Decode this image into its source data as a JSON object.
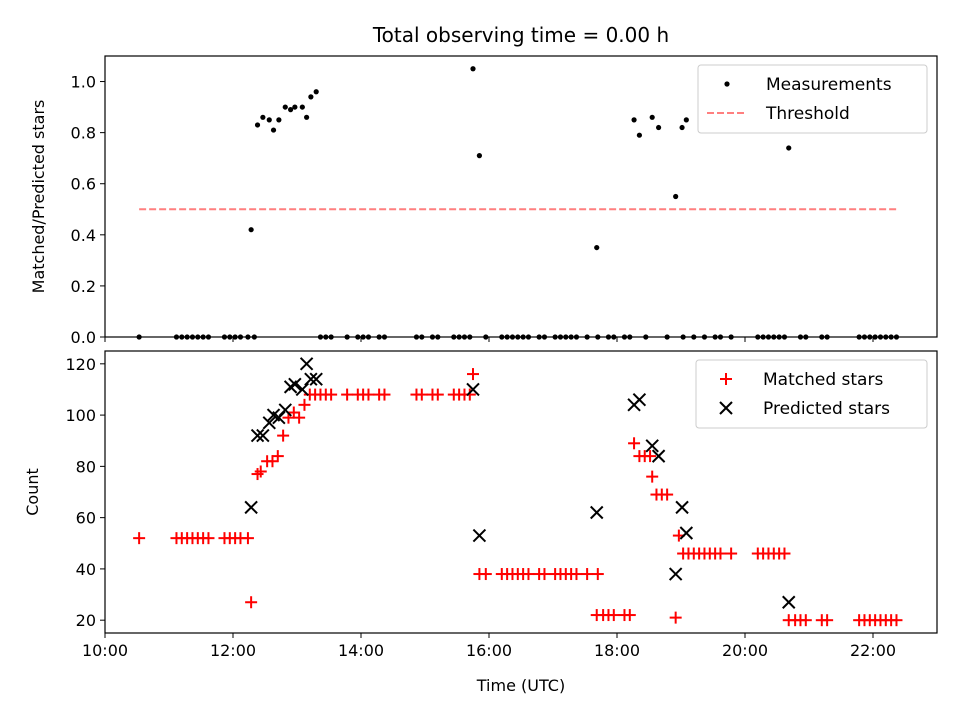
{
  "chart_data": [
    {
      "type": "scatter",
      "title": "Total observing time = 0.00 h",
      "xlabel": "",
      "ylabel": "Matched/Predicted stars",
      "xlim": [
        "10:00",
        "23:00"
      ],
      "ylim": [
        0,
        1.1
      ],
      "yticks": [
        "0.0",
        "0.2",
        "0.4",
        "0.6",
        "0.8",
        "1.0"
      ],
      "legend": {
        "position": "top-right",
        "entries": [
          "Measurements",
          "Threshold"
        ]
      },
      "grid": false,
      "series": [
        {
          "name": "Measurements",
          "marker": "dot",
          "color": "#000000",
          "points": [
            [
              "10:32",
              0.0
            ],
            [
              "11:07",
              0.0
            ],
            [
              "11:12",
              0.0
            ],
            [
              "11:17",
              0.0
            ],
            [
              "11:22",
              0.0
            ],
            [
              "11:27",
              0.0
            ],
            [
              "11:32",
              0.0
            ],
            [
              "11:37",
              0.0
            ],
            [
              "11:52",
              0.0
            ],
            [
              "11:57",
              0.0
            ],
            [
              "12:02",
              0.0
            ],
            [
              "12:07",
              0.0
            ],
            [
              "12:14",
              0.0
            ],
            [
              "12:20",
              0.0
            ],
            [
              "12:17",
              0.42
            ],
            [
              "12:23",
              0.83
            ],
            [
              "12:28",
              0.86
            ],
            [
              "12:34",
              0.85
            ],
            [
              "12:38",
              0.81
            ],
            [
              "12:43",
              0.85
            ],
            [
              "12:49",
              0.9
            ],
            [
              "12:54",
              0.89
            ],
            [
              "12:58",
              0.9
            ],
            [
              "13:05",
              0.9
            ],
            [
              "13:09",
              0.86
            ],
            [
              "13:13",
              0.94
            ],
            [
              "13:18",
              0.96
            ],
            [
              "13:22",
              0.0
            ],
            [
              "13:27",
              0.0
            ],
            [
              "13:32",
              0.0
            ],
            [
              "13:47",
              0.0
            ],
            [
              "13:57",
              0.0
            ],
            [
              "14:02",
              0.0
            ],
            [
              "14:07",
              0.0
            ],
            [
              "14:17",
              0.0
            ],
            [
              "14:22",
              0.0
            ],
            [
              "14:52",
              0.0
            ],
            [
              "14:57",
              0.0
            ],
            [
              "15:07",
              0.0
            ],
            [
              "15:12",
              0.0
            ],
            [
              "15:27",
              0.0
            ],
            [
              "15:32",
              0.0
            ],
            [
              "15:37",
              0.0
            ],
            [
              "15:42",
              0.0
            ],
            [
              "15:45",
              1.05
            ],
            [
              "15:51",
              0.71
            ],
            [
              "15:57",
              0.0
            ],
            [
              "16:12",
              0.0
            ],
            [
              "16:17",
              0.0
            ],
            [
              "16:22",
              0.0
            ],
            [
              "16:27",
              0.0
            ],
            [
              "16:32",
              0.0
            ],
            [
              "16:37",
              0.0
            ],
            [
              "16:47",
              0.0
            ],
            [
              "16:52",
              0.0
            ],
            [
              "17:02",
              0.0
            ],
            [
              "17:07",
              0.0
            ],
            [
              "17:12",
              0.0
            ],
            [
              "17:17",
              0.0
            ],
            [
              "17:22",
              0.0
            ],
            [
              "17:32",
              0.0
            ],
            [
              "17:41",
              0.35
            ],
            [
              "17:42",
              0.0
            ],
            [
              "17:52",
              0.0
            ],
            [
              "17:57",
              0.0
            ],
            [
              "18:07",
              0.0
            ],
            [
              "18:12",
              0.0
            ],
            [
              "18:16",
              0.85
            ],
            [
              "18:21",
              0.79
            ],
            [
              "18:27",
              0.0
            ],
            [
              "18:33",
              0.86
            ],
            [
              "18:39",
              0.82
            ],
            [
              "18:47",
              0.0
            ],
            [
              "18:55",
              0.55
            ],
            [
              "19:01",
              0.82
            ],
            [
              "19:05",
              0.85
            ],
            [
              "19:02",
              0.0
            ],
            [
              "19:12",
              0.0
            ],
            [
              "19:22",
              0.0
            ],
            [
              "19:32",
              0.0
            ],
            [
              "19:37",
              0.0
            ],
            [
              "19:47",
              0.0
            ],
            [
              "20:12",
              0.0
            ],
            [
              "20:17",
              0.0
            ],
            [
              "20:22",
              0.0
            ],
            [
              "20:27",
              0.0
            ],
            [
              "20:32",
              0.0
            ],
            [
              "20:37",
              0.0
            ],
            [
              "20:41",
              0.74
            ],
            [
              "20:52",
              0.0
            ],
            [
              "20:57",
              0.0
            ],
            [
              "21:12",
              0.0
            ],
            [
              "21:17",
              0.0
            ],
            [
              "21:47",
              0.0
            ],
            [
              "21:52",
              0.0
            ],
            [
              "21:57",
              0.0
            ],
            [
              "22:02",
              0.0
            ],
            [
              "22:07",
              0.0
            ],
            [
              "22:12",
              0.0
            ],
            [
              "22:17",
              0.0
            ],
            [
              "22:22",
              0.0
            ]
          ]
        },
        {
          "name": "Threshold",
          "marker": "dashed-line",
          "color": "#ff7f7f",
          "points": [
            [
              "10:32",
              0.5
            ],
            [
              "22:22",
              0.5
            ]
          ]
        }
      ]
    },
    {
      "type": "scatter",
      "title": "",
      "xlabel": "Time (UTC)",
      "ylabel": "Count",
      "xlim": [
        "10:00",
        "23:00"
      ],
      "ylim": [
        15,
        125
      ],
      "xticks": [
        "10:00",
        "12:00",
        "14:00",
        "16:00",
        "18:00",
        "20:00",
        "22:00"
      ],
      "yticks": [
        "20",
        "40",
        "60",
        "80",
        "100",
        "120"
      ],
      "legend": {
        "position": "top-right",
        "entries": [
          "Matched stars",
          "Predicted stars"
        ]
      },
      "grid": false,
      "series": [
        {
          "name": "Matched stars",
          "marker": "plus",
          "color": "#ff0000",
          "points": [
            [
              "10:32",
              52
            ],
            [
              "11:07",
              52
            ],
            [
              "11:12",
              52
            ],
            [
              "11:17",
              52
            ],
            [
              "11:22",
              52
            ],
            [
              "11:27",
              52
            ],
            [
              "11:32",
              52
            ],
            [
              "11:37",
              52
            ],
            [
              "11:52",
              52
            ],
            [
              "11:57",
              52
            ],
            [
              "12:02",
              52
            ],
            [
              "12:07",
              52
            ],
            [
              "12:14",
              52
            ],
            [
              "12:17",
              27
            ],
            [
              "12:23",
              77
            ],
            [
              "12:26",
              78
            ],
            [
              "12:32",
              82
            ],
            [
              "12:37",
              82
            ],
            [
              "12:42",
              84
            ],
            [
              "12:47",
              92
            ],
            [
              "12:52",
              99
            ],
            [
              "12:57",
              101
            ],
            [
              "13:02",
              99
            ],
            [
              "13:07",
              104
            ],
            [
              "13:12",
              108
            ],
            [
              "13:17",
              108
            ],
            [
              "13:22",
              108
            ],
            [
              "13:27",
              108
            ],
            [
              "13:32",
              108
            ],
            [
              "13:47",
              108
            ],
            [
              "13:57",
              108
            ],
            [
              "14:02",
              108
            ],
            [
              "14:07",
              108
            ],
            [
              "14:17",
              108
            ],
            [
              "14:22",
              108
            ],
            [
              "14:52",
              108
            ],
            [
              "14:57",
              108
            ],
            [
              "15:07",
              108
            ],
            [
              "15:12",
              108
            ],
            [
              "15:27",
              108
            ],
            [
              "15:32",
              108
            ],
            [
              "15:37",
              108
            ],
            [
              "15:42",
              108
            ],
            [
              "15:45",
              116
            ],
            [
              "15:51",
              38
            ],
            [
              "15:57",
              38
            ],
            [
              "16:12",
              38
            ],
            [
              "16:17",
              38
            ],
            [
              "16:22",
              38
            ],
            [
              "16:27",
              38
            ],
            [
              "16:32",
              38
            ],
            [
              "16:37",
              38
            ],
            [
              "16:47",
              38
            ],
            [
              "16:52",
              38
            ],
            [
              "17:02",
              38
            ],
            [
              "17:07",
              38
            ],
            [
              "17:12",
              38
            ],
            [
              "17:17",
              38
            ],
            [
              "17:22",
              38
            ],
            [
              "17:32",
              38
            ],
            [
              "17:41",
              22
            ],
            [
              "17:42",
              38
            ],
            [
              "17:47",
              22
            ],
            [
              "17:52",
              22
            ],
            [
              "17:57",
              22
            ],
            [
              "18:07",
              22
            ],
            [
              "18:12",
              22
            ],
            [
              "18:16",
              89
            ],
            [
              "18:21",
              84
            ],
            [
              "18:26",
              84
            ],
            [
              "18:31",
              84
            ],
            [
              "18:33",
              76
            ],
            [
              "18:37",
              69
            ],
            [
              "18:42",
              69
            ],
            [
              "18:47",
              69
            ],
            [
              "18:55",
              21
            ],
            [
              "18:58",
              53
            ],
            [
              "19:02",
              46
            ],
            [
              "19:07",
              46
            ],
            [
              "19:12",
              46
            ],
            [
              "19:17",
              46
            ],
            [
              "19:22",
              46
            ],
            [
              "19:27",
              46
            ],
            [
              "19:32",
              46
            ],
            [
              "19:37",
              46
            ],
            [
              "19:47",
              46
            ],
            [
              "20:12",
              46
            ],
            [
              "20:17",
              46
            ],
            [
              "20:22",
              46
            ],
            [
              "20:27",
              46
            ],
            [
              "20:32",
              46
            ],
            [
              "20:37",
              46
            ],
            [
              "20:41",
              20
            ],
            [
              "20:47",
              20
            ],
            [
              "20:52",
              20
            ],
            [
              "20:57",
              20
            ],
            [
              "21:12",
              20
            ],
            [
              "21:17",
              20
            ],
            [
              "21:47",
              20
            ],
            [
              "21:52",
              20
            ],
            [
              "21:57",
              20
            ],
            [
              "22:02",
              20
            ],
            [
              "22:07",
              20
            ],
            [
              "22:12",
              20
            ],
            [
              "22:17",
              20
            ],
            [
              "22:22",
              20
            ]
          ]
        },
        {
          "name": "Predicted stars",
          "marker": "x",
          "color": "#000000",
          "points": [
            [
              "12:17",
              64
            ],
            [
              "12:23",
              92
            ],
            [
              "12:28",
              92
            ],
            [
              "12:34",
              97
            ],
            [
              "12:38",
              100
            ],
            [
              "12:43",
              99
            ],
            [
              "12:49",
              102
            ],
            [
              "12:54",
              111
            ],
            [
              "12:58",
              112
            ],
            [
              "13:05",
              110
            ],
            [
              "13:09",
              120
            ],
            [
              "13:13",
              114
            ],
            [
              "13:18",
              114
            ],
            [
              "15:45",
              110
            ],
            [
              "15:51",
              53
            ],
            [
              "17:41",
              62
            ],
            [
              "18:16",
              104
            ],
            [
              "18:21",
              106
            ],
            [
              "18:33",
              88
            ],
            [
              "18:39",
              84
            ],
            [
              "18:55",
              38
            ],
            [
              "19:01",
              64
            ],
            [
              "19:05",
              54
            ],
            [
              "20:41",
              27
            ]
          ]
        }
      ]
    }
  ]
}
